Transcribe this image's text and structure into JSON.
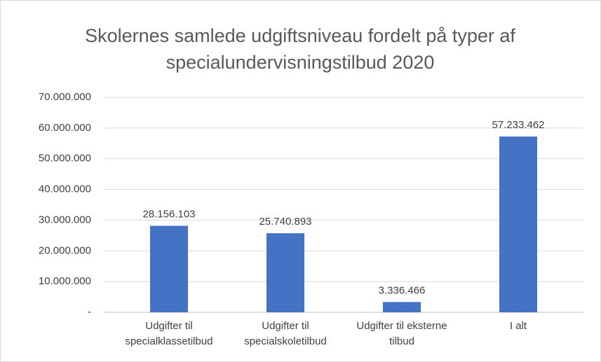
{
  "chart_data": {
    "type": "bar",
    "title": "Skolernes samlede udgiftsniveau fordelt på typer af specialundervisningstilbud 2020",
    "categories": [
      "Udgifter til specialklassetilbud",
      "Udgifter til specialskoletilbud",
      "Udgifter til eksterne tilbud",
      "I alt"
    ],
    "values": [
      28156103,
      25740893,
      3336466,
      57233462
    ],
    "value_labels": [
      "28.156.103",
      "25.740.893",
      "3.336.466",
      "57.233.462"
    ],
    "color": "#4472c4",
    "ylim": [
      0,
      70000000
    ],
    "yticks": [
      {
        "value": 0,
        "label": "-"
      },
      {
        "value": 10000000,
        "label": "10.000.000"
      },
      {
        "value": 20000000,
        "label": "20.000.000"
      },
      {
        "value": 30000000,
        "label": "30.000.000"
      },
      {
        "value": 40000000,
        "label": "40.000.000"
      },
      {
        "value": 50000000,
        "label": "50.000.000"
      },
      {
        "value": 60000000,
        "label": "60.000.000"
      },
      {
        "value": 70000000,
        "label": "70.000.000"
      }
    ],
    "grid": true
  }
}
